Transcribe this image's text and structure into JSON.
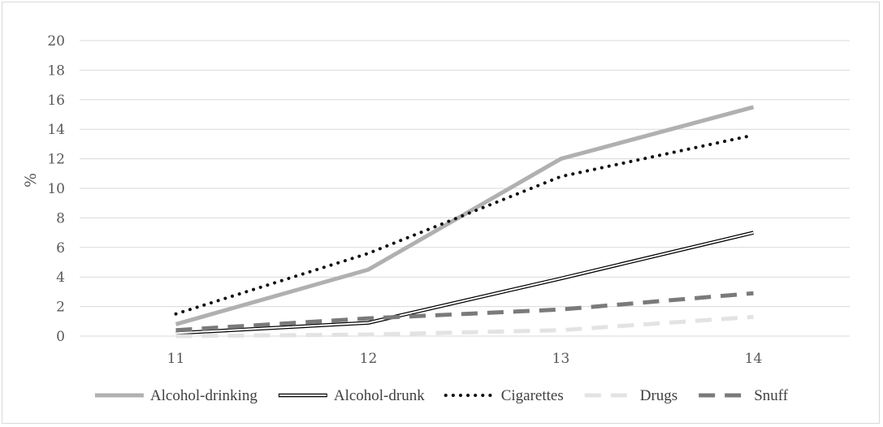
{
  "chart_data": {
    "type": "line",
    "title": "",
    "xlabel": "",
    "ylabel": "%",
    "categories": [
      "11",
      "12",
      "13",
      "14"
    ],
    "ylim": [
      0,
      20
    ],
    "yticks": [
      "0",
      "2",
      "4",
      "6",
      "8",
      "10",
      "12",
      "14",
      "16",
      "18",
      "20"
    ],
    "grid": true,
    "legend_position": "bottom",
    "series": [
      {
        "name": "Alcohol-drinking",
        "values": [
          0.8,
          4.5,
          12.0,
          15.5
        ],
        "color": "#b0b0b0",
        "style": "solid-thick"
      },
      {
        "name": "Alcohol-drunk",
        "values": [
          0.2,
          0.9,
          3.9,
          7.0
        ],
        "color": "#000000",
        "style": "double"
      },
      {
        "name": "Cigarettes",
        "values": [
          1.5,
          5.6,
          10.8,
          13.6
        ],
        "color": "#111111",
        "style": "dotted"
      },
      {
        "name": "Drugs",
        "values": [
          0.0,
          0.1,
          0.4,
          1.3
        ],
        "color": "#e3e3e3",
        "style": "dashed"
      },
      {
        "name": "Snuff",
        "values": [
          0.4,
          1.2,
          1.8,
          2.9
        ],
        "color": "#7a7a7a",
        "style": "dashed"
      }
    ]
  }
}
